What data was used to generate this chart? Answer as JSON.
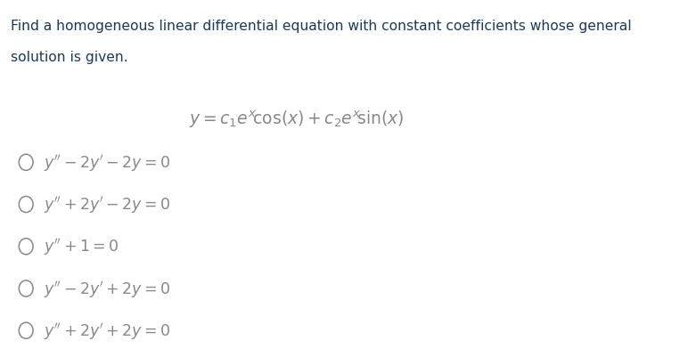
{
  "background_color": "#ffffff",
  "title_line1": "Find a homogeneous linear differential equation with constant coefficients whose general",
  "title_line2": "solution is given.",
  "title_color": "#1a3a5c",
  "title_fontsize": 11.2,
  "formula_text": "$y = c_1 e^x\\!\\cos(x) + c_2 e^x\\!\\sin(x)$",
  "formula_color": "#888888",
  "formula_fontsize": 13.5,
  "options_latex": [
    "$y'' - 2y' - 2y = 0$",
    "$y'' + 2y' - 2y = 0$",
    "$y'' + 1 = 0$",
    "$y'' - 2y' + 2y = 0$",
    "$y'' + 2y' + 2y = 0$"
  ],
  "option_color": "#888888",
  "option_fontsize": 12.5,
  "circle_color": "#888888",
  "fig_width": 7.72,
  "fig_height": 4.02,
  "dpi": 100
}
